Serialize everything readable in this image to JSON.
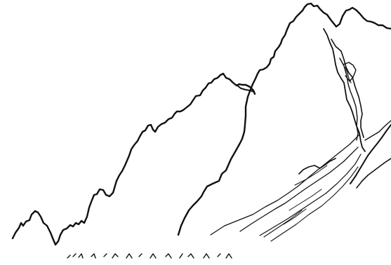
{
  "illustration": {
    "subject": "",
    "caption": ""
  },
  "colors": {
    "ink": "#111111",
    "paper": "#ffffff"
  }
}
